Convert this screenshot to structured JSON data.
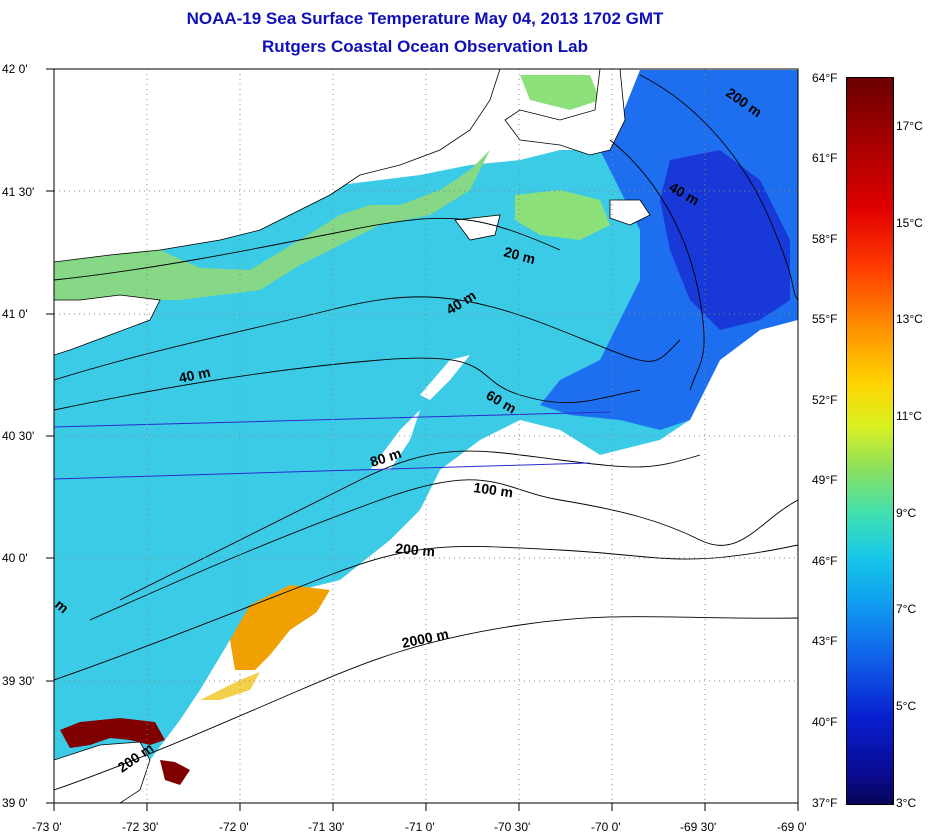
{
  "title_line1": "NOAA-19 Sea Surface Temperature May 04, 2013 1702 GMT",
  "title_line2": "Rutgers Coastal Ocean Observation Lab",
  "axes": {
    "lat_labels": [
      "42 0'",
      "41 30'",
      "41 0'",
      "40 30'",
      "40 0'",
      "39 30'",
      "39 0'"
    ],
    "lon_labels": [
      "-73 0'",
      "-72 30'",
      "-72 0'",
      "-71 30'",
      "-71 0'",
      "-70 30'",
      "-70 0'",
      "-69 30'",
      "-69 0'"
    ],
    "fahrenheit_labels": [
      "64°F",
      "61°F",
      "58°F",
      "55°F",
      "52°F",
      "49°F",
      "46°F",
      "43°F",
      "40°F",
      "37°F"
    ]
  },
  "colorbar": {
    "celsius_labels": [
      "17°C",
      "15°C",
      "13°C",
      "11°C",
      "9°C",
      "7°C",
      "5°C",
      "3°C"
    ],
    "min_c": 3,
    "max_c": 18
  },
  "isobath_labels": [
    "200 m",
    "40 m",
    "20 m",
    "40 m",
    "40 m",
    "60 m",
    "80 m",
    "100 m",
    "200 m",
    "2000 m",
    "200 m",
    "m"
  ],
  "colors": {
    "title": "#1010b8",
    "ocean_cool": "#30c8e0",
    "ocean_cold": "#1050e0",
    "warm": "#f0a000",
    "hot": "#800000",
    "land_coastal": "#80e070"
  }
}
